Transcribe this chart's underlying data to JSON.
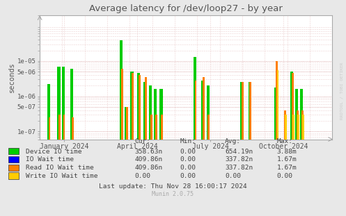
{
  "title": "Average latency for /dev/loop27 - by year",
  "ylabel": "seconds",
  "background_color": "#e8e8e8",
  "plot_bg_color": "#ffffff",
  "grid_color_minor": "#ddaaaa",
  "grid_color_major": "#cc8888",
  "watermark": "RRDTOOL / TOBI OETIKER",
  "munin_version": "Munin 2.0.75",
  "title_color": "#555555",
  "tick_color": "#555555",
  "axis_color": "#aaaaaa",
  "legend": [
    {
      "label": "Device IO time",
      "color": "#00cc00"
    },
    {
      "label": "IO Wait time",
      "color": "#0000ff"
    },
    {
      "label": "Read IO Wait time",
      "color": "#ff7f00"
    },
    {
      "label": "Write IO Wait time",
      "color": "#ffcc00"
    }
  ],
  "stats_headers": [
    "Cur:",
    "Min:",
    "Avg:",
    "Max:"
  ],
  "stats_rows": [
    [
      "358.63n",
      "0.00",
      "654.19n",
      "3.88m"
    ],
    [
      "409.86n",
      "0.00",
      "337.82n",
      "1.67m"
    ],
    [
      "409.86n",
      "0.00",
      "337.82n",
      "1.67m"
    ],
    [
      "0.00",
      "0.00",
      "0.00",
      "0.00"
    ]
  ],
  "last_update": "Last update: Thu Nov 28 16:00:17 2024",
  "yticks": [
    1e-07,
    5e-07,
    1e-06,
    5e-06,
    1e-05
  ],
  "ytick_labels": [
    "1e-07",
    "5e-07",
    "1e-06",
    "5e-06",
    "1e-05"
  ],
  "ylim": [
    6e-08,
    0.0002
  ],
  "xlim": [
    0.0,
    1.0
  ],
  "xtick_positions": [
    0.083,
    0.333,
    0.583,
    0.833
  ],
  "xtick_labels": [
    "January 2024",
    "April 2024",
    "July 2024",
    "October 2024"
  ],
  "green_bars": [
    [
      0.03,
      2.2e-06
    ],
    [
      0.065,
      7e-06
    ],
    [
      0.08,
      7e-06
    ],
    [
      0.11,
      6e-06
    ],
    [
      0.278,
      3.8e-05
    ],
    [
      0.295,
      5e-07
    ],
    [
      0.315,
      5e-06
    ],
    [
      0.338,
      4.5e-06
    ],
    [
      0.36,
      2.5e-06
    ],
    [
      0.378,
      2e-06
    ],
    [
      0.395,
      1.6e-06
    ],
    [
      0.415,
      1.6e-06
    ],
    [
      0.53,
      1.3e-05
    ],
    [
      0.558,
      2.8e-06
    ],
    [
      0.575,
      2e-06
    ],
    [
      0.69,
      2.6e-06
    ],
    [
      0.718,
      2.6e-06
    ],
    [
      0.808,
      1.8e-06
    ],
    [
      0.862,
      5e-06
    ],
    [
      0.878,
      1.6e-06
    ],
    [
      0.895,
      1.6e-06
    ]
  ],
  "orange_bars": [
    [
      0.033,
      2.5e-07
    ],
    [
      0.068,
      3e-07
    ],
    [
      0.083,
      3e-07
    ],
    [
      0.113,
      2.5e-07
    ],
    [
      0.281,
      6e-06
    ],
    [
      0.298,
      5e-07
    ],
    [
      0.318,
      4.5e-06
    ],
    [
      0.341,
      4e-06
    ],
    [
      0.363,
      3.5e-06
    ],
    [
      0.381,
      3e-07
    ],
    [
      0.398,
      3e-07
    ],
    [
      0.418,
      3e-07
    ],
    [
      0.533,
      2.8e-06
    ],
    [
      0.561,
      3.5e-06
    ],
    [
      0.578,
      3e-07
    ],
    [
      0.693,
      2.6e-06
    ],
    [
      0.721,
      2.6e-06
    ],
    [
      0.811,
      1e-05
    ],
    [
      0.838,
      4e-07
    ],
    [
      0.865,
      4.5e-06
    ],
    [
      0.881,
      4e-07
    ],
    [
      0.898,
      4e-07
    ]
  ],
  "yellow_bars": [
    [
      0.814,
      5.5e-06
    ],
    [
      0.841,
      3e-07
    ],
    [
      0.868,
      3e-07
    ],
    [
      0.884,
      3e-07
    ],
    [
      0.901,
      3e-07
    ]
  ]
}
